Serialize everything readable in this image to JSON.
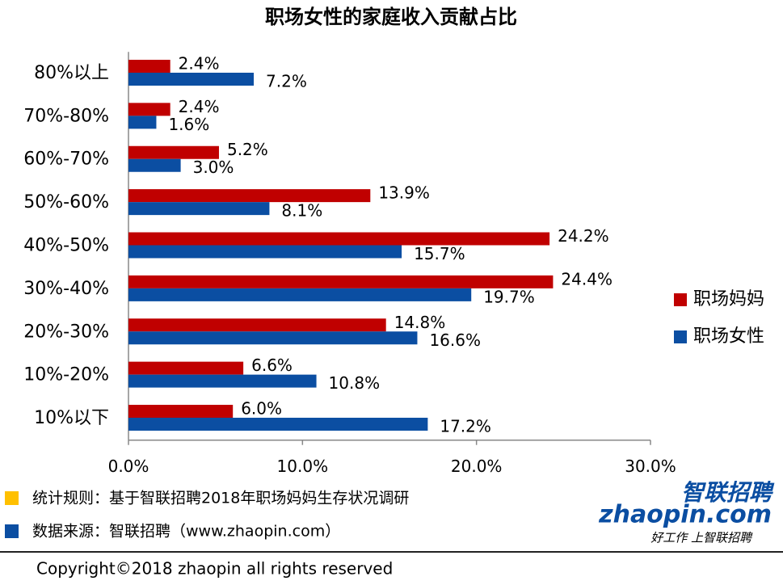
{
  "chart_data": {
    "type": "bar",
    "orientation": "horizontal",
    "title": "职场女性的家庭收入贡献占比",
    "categories": [
      "80%以上",
      "70%-80%",
      "60%-70%",
      "50%-60%",
      "40%-50%",
      "30%-40%",
      "20%-30%",
      "10%-20%",
      "10%以下"
    ],
    "series": [
      {
        "name": "职场妈妈",
        "color": "#c00000",
        "values": [
          2.4,
          2.4,
          5.2,
          13.9,
          24.2,
          24.4,
          14.8,
          6.6,
          6.0
        ],
        "value_labels": [
          "2.4%",
          "2.4%",
          "5.2%",
          "13.9%",
          "24.2%",
          "24.4%",
          "14.8%",
          "6.6%",
          "6.0%"
        ]
      },
      {
        "name": "职场女性",
        "color": "#0b4ea2",
        "values": [
          7.2,
          1.6,
          3.0,
          8.1,
          15.7,
          19.7,
          16.6,
          10.8,
          17.2
        ],
        "value_labels": [
          "7.2%",
          "1.6%",
          "3.0%",
          "8.1%",
          "15.7%",
          "19.7%",
          "16.6%",
          "10.8%",
          "17.2%"
        ]
      }
    ],
    "xlim": [
      0,
      30
    ],
    "xticks": [
      {
        "value": 0,
        "label": "0.0%"
      },
      {
        "value": 10,
        "label": "10.0%"
      },
      {
        "value": 20,
        "label": "20.0%"
      },
      {
        "value": 30,
        "label": "30.0%"
      }
    ],
    "legend": "right"
  },
  "footer": {
    "notes": [
      {
        "text": "统计规则：基于智联招聘2018年职场妈妈生存状况调研",
        "color": "#ffc000"
      },
      {
        "text": "数据来源：智联招聘（www.zhaopin.com）",
        "color": "#0b4ea2"
      }
    ],
    "logo": {
      "name": "智联招聘",
      "site": "zhaopin.com",
      "slogan": "好工作 上智联招聘"
    },
    "copyright": "Copyright©2018 zhaopin all rights reserved"
  }
}
